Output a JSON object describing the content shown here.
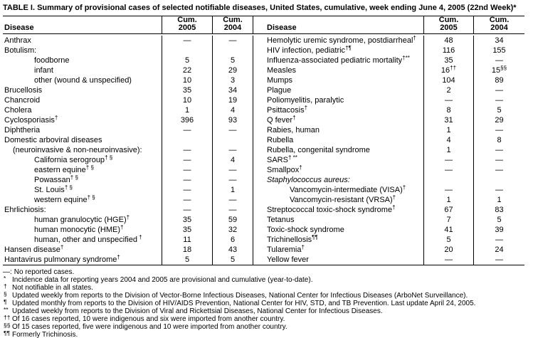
{
  "title": "TABLE I. Summary of provisional cases of selected notifiable diseases, United States, cumulative, week ending June 4, 2005 (22nd Week)*",
  "header": {
    "disease_left": "Disease",
    "disease_right": "Disease",
    "cum": "Cum.",
    "year_2005": "2005",
    "year_2004": "2004"
  },
  "table": {
    "no_cases_symbol": "—",
    "left_rows": [
      {
        "name": "Anthrax",
        "sup": "",
        "indent": 0,
        "italic": false,
        "v05": "—",
        "s05": "",
        "v04": "—",
        "s04": ""
      },
      {
        "name": "Botulism:",
        "sup": "",
        "indent": 0,
        "italic": false,
        "v05": "",
        "s05": "",
        "v04": "",
        "s04": ""
      },
      {
        "name": "foodborne",
        "sup": "",
        "indent": 2,
        "italic": false,
        "v05": "5",
        "s05": "",
        "v04": "5",
        "s04": ""
      },
      {
        "name": "infant",
        "sup": "",
        "indent": 2,
        "italic": false,
        "v05": "22",
        "s05": "",
        "v04": "29",
        "s04": ""
      },
      {
        "name": "other (wound & unspecified)",
        "sup": "",
        "indent": 2,
        "italic": false,
        "v05": "10",
        "s05": "",
        "v04": "3",
        "s04": ""
      },
      {
        "name": "Brucellosis",
        "sup": "",
        "indent": 0,
        "italic": false,
        "v05": "35",
        "s05": "",
        "v04": "34",
        "s04": ""
      },
      {
        "name": "Chancroid",
        "sup": "",
        "indent": 0,
        "italic": false,
        "v05": "10",
        "s05": "",
        "v04": "19",
        "s04": ""
      },
      {
        "name": "Cholera",
        "sup": "",
        "indent": 0,
        "italic": false,
        "v05": "1",
        "s05": "",
        "v04": "4",
        "s04": ""
      },
      {
        "name": "Cyclosporiasis",
        "sup": "†",
        "indent": 0,
        "italic": false,
        "v05": "396",
        "s05": "",
        "v04": "93",
        "s04": ""
      },
      {
        "name": "Diphtheria",
        "sup": "",
        "indent": 0,
        "italic": false,
        "v05": "—",
        "s05": "",
        "v04": "—",
        "s04": ""
      },
      {
        "name": "Domestic arboviral diseases",
        "sup": "",
        "indent": 0,
        "italic": false,
        "v05": "",
        "s05": "",
        "v04": "",
        "s04": ""
      },
      {
        "name": "(neuroinvasive & non-neuroinvasive):",
        "sup": "",
        "indent": 1,
        "italic": false,
        "v05": "—",
        "s05": "",
        "v04": "—",
        "s04": ""
      },
      {
        "name": "California serogroup",
        "sup": "† §",
        "indent": 2,
        "italic": false,
        "v05": "—",
        "s05": "",
        "v04": "4",
        "s04": ""
      },
      {
        "name": "eastern equine",
        "sup": "† §",
        "indent": 2,
        "italic": false,
        "v05": "—",
        "s05": "",
        "v04": "—",
        "s04": ""
      },
      {
        "name": "Powassan",
        "sup": "† §",
        "indent": 2,
        "italic": false,
        "v05": "—",
        "s05": "",
        "v04": "—",
        "s04": ""
      },
      {
        "name": "St. Louis",
        "sup": "† §",
        "indent": 2,
        "italic": false,
        "v05": "—",
        "s05": "",
        "v04": "1",
        "s04": ""
      },
      {
        "name": "western equine",
        "sup": "† §",
        "indent": 2,
        "italic": false,
        "v05": "—",
        "s05": "",
        "v04": "—",
        "s04": ""
      },
      {
        "name": "Ehrlichiosis:",
        "sup": "",
        "indent": 0,
        "italic": false,
        "v05": "—",
        "s05": "",
        "v04": "—",
        "s04": ""
      },
      {
        "name": "human granulocytic (HGE)",
        "sup": "†",
        "indent": 2,
        "italic": false,
        "v05": "35",
        "s05": "",
        "v04": "59",
        "s04": ""
      },
      {
        "name": "human monocytic (HME)",
        "sup": "†",
        "indent": 2,
        "italic": false,
        "v05": "35",
        "s05": "",
        "v04": "32",
        "s04": ""
      },
      {
        "name": "human, other and unspecified",
        "sup": " †",
        "indent": 2,
        "italic": false,
        "v05": "11",
        "s05": "",
        "v04": "6",
        "s04": ""
      },
      {
        "name": "Hansen disease",
        "sup": "†",
        "indent": 0,
        "italic": false,
        "v05": "18",
        "s05": "",
        "v04": "43",
        "s04": ""
      },
      {
        "name": "Hantavirus pulmonary syndrome",
        "sup": "†",
        "indent": 0,
        "italic": false,
        "v05": "5",
        "s05": "",
        "v04": "5",
        "s04": ""
      }
    ],
    "right_rows": [
      {
        "name": "Hemolytic uremic syndrome, postdiarrheal",
        "sup": "†",
        "indent": 0,
        "italic": false,
        "v05": "48",
        "s05": "",
        "v04": "34",
        "s04": ""
      },
      {
        "name": "HIV infection, pediatric",
        "sup": "†¶",
        "indent": 0,
        "italic": false,
        "v05": "116",
        "s05": "",
        "v04": "155",
        "s04": ""
      },
      {
        "name": "Influenza-associated pediatric mortality",
        "sup": "†**",
        "indent": 0,
        "italic": false,
        "v05": "35",
        "s05": "",
        "v04": "—",
        "s04": ""
      },
      {
        "name": "Measles",
        "sup": "",
        "indent": 0,
        "italic": false,
        "v05": "16",
        "s05": "††",
        "v04": "15",
        "s04": "§§"
      },
      {
        "name": "Mumps",
        "sup": "",
        "indent": 0,
        "italic": false,
        "v05": "104",
        "s05": "",
        "v04": "89",
        "s04": ""
      },
      {
        "name": "Plague",
        "sup": "",
        "indent": 0,
        "italic": false,
        "v05": "2",
        "s05": "",
        "v04": "—",
        "s04": ""
      },
      {
        "name": "Poliomyelitis, paralytic",
        "sup": "",
        "indent": 0,
        "italic": false,
        "v05": "—",
        "s05": "",
        "v04": "—",
        "s04": ""
      },
      {
        "name": "Psittacosis",
        "sup": "†",
        "indent": 0,
        "italic": false,
        "v05": "8",
        "s05": "",
        "v04": "5",
        "s04": ""
      },
      {
        "name": "Q fever",
        "sup": "†",
        "indent": 0,
        "italic": false,
        "v05": "31",
        "s05": "",
        "v04": "29",
        "s04": ""
      },
      {
        "name": "Rabies, human",
        "sup": "",
        "indent": 0,
        "italic": false,
        "v05": "1",
        "s05": "",
        "v04": "—",
        "s04": ""
      },
      {
        "name": "Rubella",
        "sup": "",
        "indent": 0,
        "italic": false,
        "v05": "4",
        "s05": "",
        "v04": "8",
        "s04": ""
      },
      {
        "name": "Rubella, congenital syndrome",
        "sup": "",
        "indent": 0,
        "italic": false,
        "v05": "1",
        "s05": "",
        "v04": "—",
        "s04": ""
      },
      {
        "name": "SARS",
        "sup": "† **",
        "indent": 0,
        "italic": false,
        "v05": "—",
        "s05": "",
        "v04": "—",
        "s04": ""
      },
      {
        "name": "Smallpox",
        "sup": "†",
        "indent": 0,
        "italic": false,
        "v05": "—",
        "s05": "",
        "v04": "—",
        "s04": ""
      },
      {
        "name": "Staphylococcus aureus:",
        "sup": "",
        "indent": 0,
        "italic": true,
        "v05": "",
        "s05": "",
        "v04": "",
        "s04": ""
      },
      {
        "name": "Vancomycin-intermediate (VISA)",
        "sup": "†",
        "indent": 2,
        "italic": false,
        "v05": "—",
        "s05": "",
        "v04": "—",
        "s04": ""
      },
      {
        "name": "Vancomycin-resistant (VRSA)",
        "sup": "†",
        "indent": 2,
        "italic": false,
        "v05": "1",
        "s05": "",
        "v04": "1",
        "s04": ""
      },
      {
        "name": "Streptococcal toxic-shock syndrome",
        "sup": "†",
        "indent": 0,
        "italic": false,
        "v05": "67",
        "s05": "",
        "v04": "83",
        "s04": ""
      },
      {
        "name": "Tetanus",
        "sup": "",
        "indent": 0,
        "italic": false,
        "v05": "7",
        "s05": "",
        "v04": "5",
        "s04": ""
      },
      {
        "name": "Toxic-shock syndrome",
        "sup": "",
        "indent": 0,
        "italic": false,
        "v05": "41",
        "s05": "",
        "v04": "39",
        "s04": ""
      },
      {
        "name": "Trichinellosis",
        "sup": "¶¶",
        "indent": 0,
        "italic": false,
        "v05": "5",
        "s05": "",
        "v04": "—",
        "s04": ""
      },
      {
        "name": "Tularemia",
        "sup": "†",
        "indent": 0,
        "italic": false,
        "v05": "20",
        "s05": "",
        "v04": "24",
        "s04": ""
      },
      {
        "name": "Yellow fever",
        "sup": "",
        "indent": 0,
        "italic": false,
        "v05": "—",
        "s05": "",
        "v04": "—",
        "s04": ""
      }
    ]
  },
  "footnotes": [
    {
      "marker": "—:",
      "sup": false,
      "text": "No reported cases."
    },
    {
      "marker": "*",
      "sup": true,
      "text": "Incidence data for reporting years 2004 and 2005 are provisional and cumulative (year-to-date)."
    },
    {
      "marker": "†",
      "sup": true,
      "text": "Not notifiable in all states."
    },
    {
      "marker": "§",
      "sup": true,
      "text": "Updated weekly from reports to the Division of Vector-Borne Infectious Diseases, National Center for Infectious Diseases (ArboNet Surveillance)."
    },
    {
      "marker": "¶",
      "sup": true,
      "text": "Updated monthly from reports to the Division of HIV/AIDS Prevention, National Center for HIV, STD, and TB Prevention. Last update April 24, 2005."
    },
    {
      "marker": "**",
      "sup": true,
      "text": "Updated weekly from reports to the Division of Viral and Rickettsial Diseases, National Center for Infectious Diseases."
    },
    {
      "marker": "††",
      "sup": true,
      "text": "Of 16 cases reported, 10 were indigenous and six were imported from another country."
    },
    {
      "marker": "§§",
      "sup": true,
      "text": "Of 15 cases reported, five were indigenous and 10 were imported from another country."
    },
    {
      "marker": "¶¶",
      "sup": true,
      "text": "Formerly Trichinosis."
    }
  ]
}
